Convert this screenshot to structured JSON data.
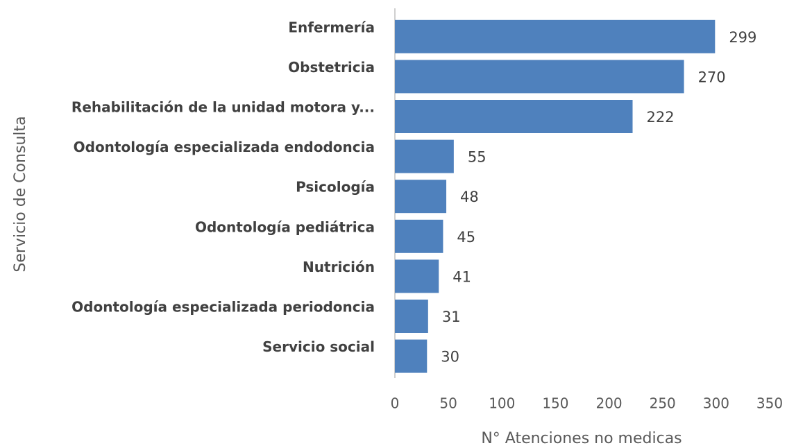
{
  "chart_data": {
    "type": "bar",
    "orientation": "horizontal",
    "categories": [
      "Enfermería",
      "Obstetricia",
      "Rehabilitación de la unidad motora y...",
      "Odontología especializada endodoncia",
      "Psicología",
      "Odontología pediátrica",
      "Nutrición",
      "Odontología especializada periodoncia",
      "Servicio social"
    ],
    "values": [
      299,
      270,
      222,
      55,
      48,
      45,
      41,
      31,
      30
    ],
    "color": "#4f81bd",
    "xlabel": "N° Atenciones no medicas",
    "ylabel": "Servicio de Consulta",
    "xlim": [
      0,
      350
    ],
    "xticks": [
      0,
      50,
      100,
      150,
      200,
      250,
      300,
      350
    ],
    "grid": false
  }
}
